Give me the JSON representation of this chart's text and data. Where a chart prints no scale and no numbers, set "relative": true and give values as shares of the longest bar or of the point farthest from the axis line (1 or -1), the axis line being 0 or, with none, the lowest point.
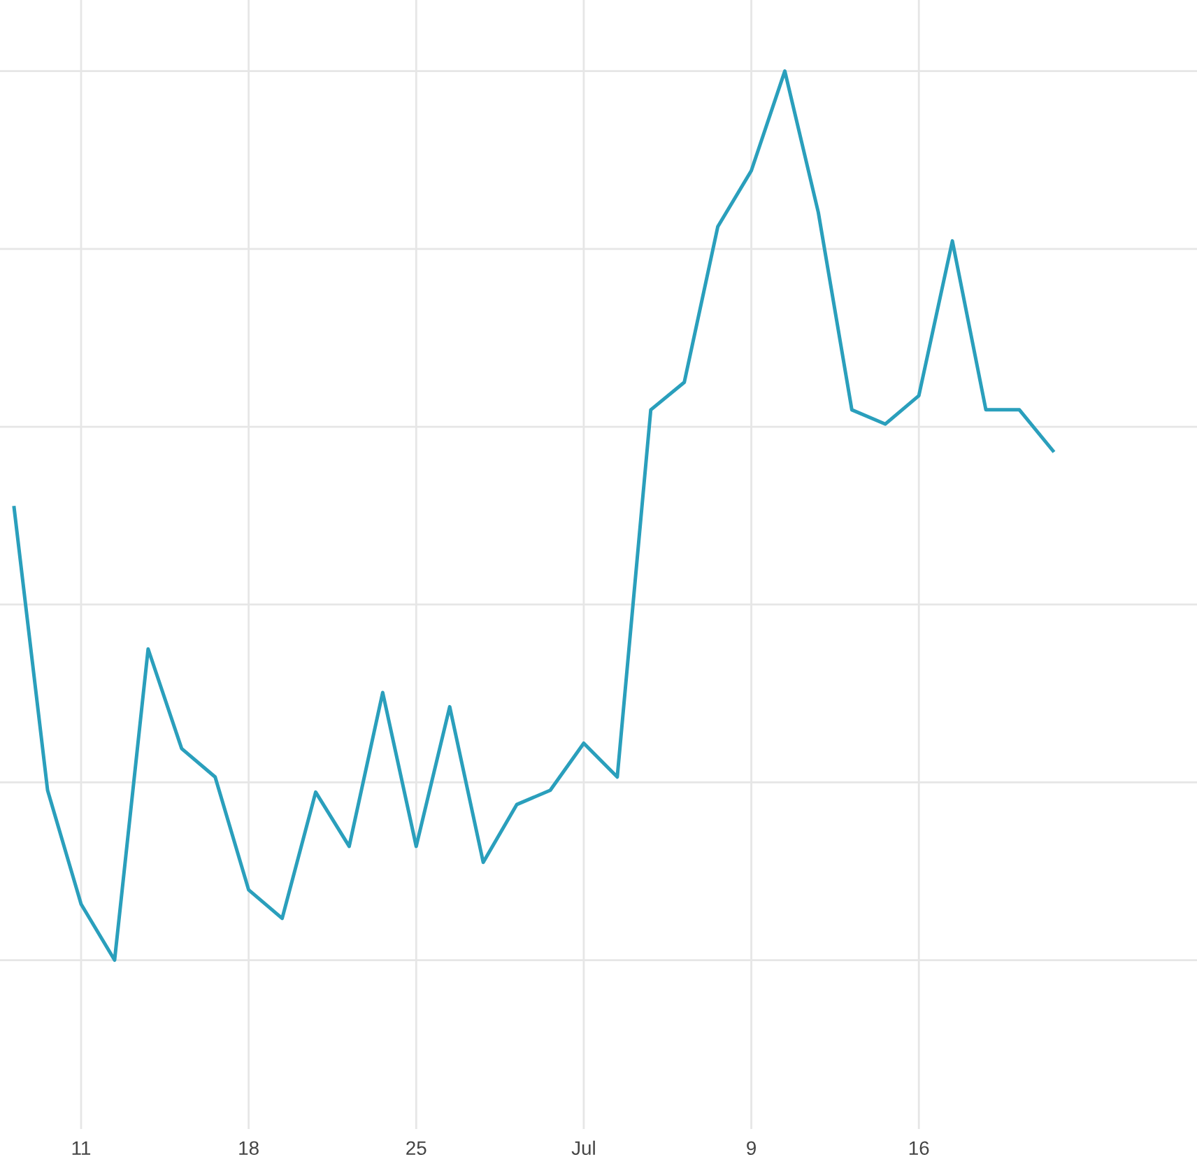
{
  "chart_data": {
    "type": "line",
    "relative": true,
    "grid": true,
    "tick_labels": "x",
    "legend": false,
    "categories": [
      null,
      null,
      "11",
      null,
      null,
      null,
      null,
      "18",
      null,
      null,
      null,
      null,
      "25",
      null,
      null,
      null,
      null,
      "Jul",
      null,
      null,
      null,
      null,
      "9",
      null,
      null,
      null,
      null,
      "16",
      null,
      null,
      null,
      null
    ],
    "series": [
      {
        "color": "#2a9fbc",
        "values": [
          0.509,
          0.191,
          0.063,
          0,
          0.35,
          0.238,
          0.206,
          0.079,
          0.047,
          0.189,
          0.128,
          0.301,
          0.128,
          0.285,
          0.11,
          0.175,
          0.191,
          0.244,
          0.206,
          0.619,
          0.65,
          0.825,
          0.888,
          1,
          0.841,
          0.619,
          0.603,
          0.635,
          0.809,
          0.619,
          0.619,
          0.573
        ]
      }
    ]
  }
}
